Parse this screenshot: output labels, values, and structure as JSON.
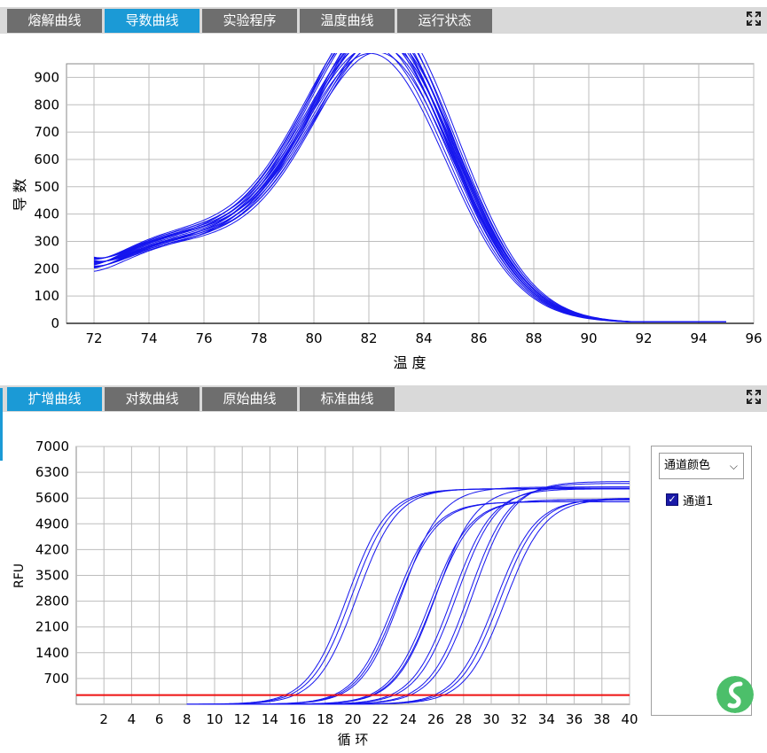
{
  "top_panel": {
    "tabs": [
      {
        "label": "熔解曲线",
        "active": false
      },
      {
        "label": "导数曲线",
        "active": true
      },
      {
        "label": "实验程序",
        "active": false
      },
      {
        "label": "温度曲线",
        "active": false
      },
      {
        "label": "运行状态",
        "active": false
      }
    ],
    "expand_icon": "expand-icon"
  },
  "bottom_panel": {
    "tabs": [
      {
        "label": "扩增曲线",
        "active": true
      },
      {
        "label": "对数曲线",
        "active": false
      },
      {
        "label": "原始曲线",
        "active": false
      },
      {
        "label": "标准曲线",
        "active": false
      }
    ],
    "expand_icon": "expand-icon",
    "channel_select": {
      "value": "通道颜色",
      "icon": "chevron-down-icon"
    },
    "legend": [
      {
        "label": "通道1",
        "checked": true
      }
    ]
  },
  "colors": {
    "tab_active": "#1b9ad6",
    "tab_inactive": "#6e6e6e",
    "curve": "#1515ee",
    "threshold": "#ee1111",
    "logo": "#4cbf6a"
  },
  "chart_data": [
    {
      "type": "line",
      "title": "",
      "xlabel": "温 度",
      "ylabel": "导 数",
      "xlim": [
        71,
        96
      ],
      "ylim": [
        0,
        950
      ],
      "x_ticks": [
        "72",
        "74",
        "76",
        "78",
        "80",
        "82",
        "84",
        "86",
        "88",
        "90",
        "92",
        "94",
        "96"
      ],
      "y_ticks": [
        "0",
        "100",
        "200",
        "300",
        "400",
        "500",
        "600",
        "700",
        "800",
        "900"
      ],
      "grid": true,
      "series_count": 20,
      "x_range": [
        72,
        95
      ],
      "curve_model": {
        "base_at_72": [
          190,
          230
        ],
        "shoulder_at_76": [
          320,
          370
        ],
        "peak_temp": [
          82.3,
          82.8
        ],
        "peak_value": [
          780,
          925
        ],
        "value_at_95": 10
      },
      "sample_series": [
        {
          "x": [
            72,
            74,
            76,
            78,
            80,
            82,
            82.5,
            84,
            86,
            88,
            90,
            92,
            94,
            95
          ],
          "values": [
            190,
            290,
            325,
            340,
            540,
            775,
            780,
            700,
            440,
            210,
            95,
            40,
            15,
            10
          ]
        },
        {
          "x": [
            72,
            74,
            76,
            78,
            80,
            82,
            82.5,
            84,
            86,
            88,
            90,
            92,
            94,
            95
          ],
          "values": [
            230,
            325,
            368,
            385,
            590,
            890,
            925,
            820,
            500,
            230,
            100,
            42,
            16,
            10
          ]
        }
      ]
    },
    {
      "type": "line",
      "title": "",
      "xlabel": "循 环",
      "ylabel": "RFU",
      "xlim": [
        0,
        40
      ],
      "ylim": [
        0,
        7000
      ],
      "x_ticks": [
        "2",
        "4",
        "6",
        "8",
        "10",
        "12",
        "14",
        "16",
        "18",
        "20",
        "22",
        "24",
        "26",
        "28",
        "30",
        "32",
        "34",
        "36",
        "38",
        "40"
      ],
      "y_ticks": [
        "700",
        "1400",
        "2100",
        "2800",
        "3500",
        "4200",
        "4900",
        "5600",
        "6300",
        "7000"
      ],
      "grid": true,
      "threshold": 250,
      "curve_model": "sigmoid",
      "series": [
        {
          "midpoint": 19.6,
          "plateau": 5850
        },
        {
          "midpoint": 19.9,
          "plateau": 5850
        },
        {
          "midpoint": 20.3,
          "plateau": 5860
        },
        {
          "midpoint": 23.0,
          "plateau": 5500
        },
        {
          "midpoint": 23.2,
          "plateau": 5500
        },
        {
          "midpoint": 23.5,
          "plateau": 5900
        },
        {
          "midpoint": 25.6,
          "plateau": 5550
        },
        {
          "midpoint": 25.8,
          "plateau": 5560
        },
        {
          "midpoint": 26.0,
          "plateau": 5900
        },
        {
          "midpoint": 27.2,
          "plateau": 5850
        },
        {
          "midpoint": 27.5,
          "plateau": 5900
        },
        {
          "midpoint": 28.4,
          "plateau": 6000
        },
        {
          "midpoint": 28.7,
          "plateau": 6050
        },
        {
          "midpoint": 30.3,
          "plateau": 5580
        },
        {
          "midpoint": 30.6,
          "plateau": 5600
        },
        {
          "midpoint": 31.0,
          "plateau": 5580
        }
      ]
    }
  ]
}
